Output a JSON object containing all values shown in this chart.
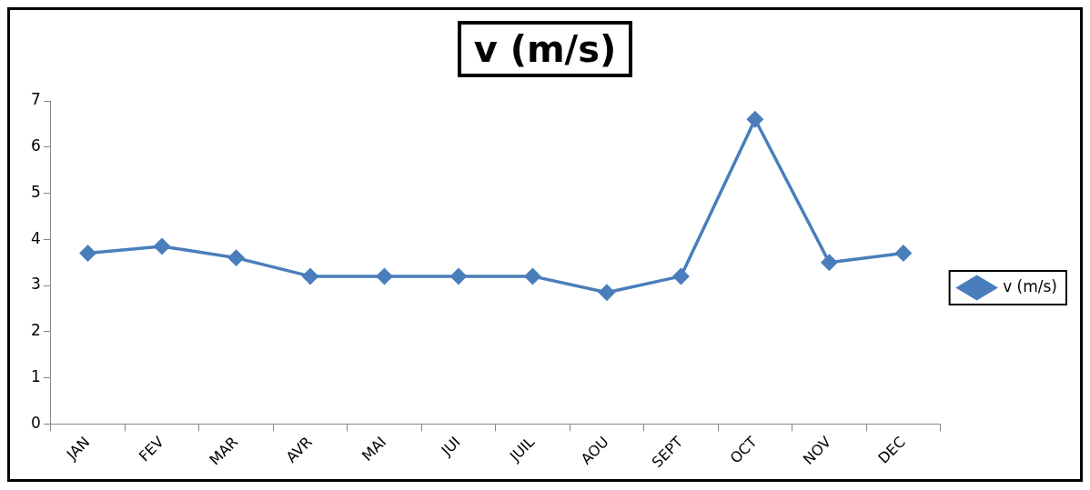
{
  "chart_data": {
    "type": "line",
    "title": "v (m/s)",
    "categories": [
      "JAN",
      "FEV",
      "MAR",
      "AVR",
      "MAI",
      "JUI",
      "JUIL",
      "AOU",
      "SEPT",
      "OCT",
      "NOV",
      "DEC"
    ],
    "series": [
      {
        "name": "v (m/s)",
        "color": "#4a7ebb",
        "values": [
          3.7,
          3.85,
          3.6,
          3.2,
          3.2,
          3.2,
          3.2,
          2.85,
          3.2,
          6.6,
          3.5,
          3.7
        ]
      }
    ],
    "ylim": [
      0,
      7
    ],
    "yticks": [
      0,
      1,
      2,
      3,
      4,
      5,
      6,
      7
    ],
    "grid": false,
    "legend": "right",
    "marker": "diamond",
    "line_style": "solid"
  }
}
